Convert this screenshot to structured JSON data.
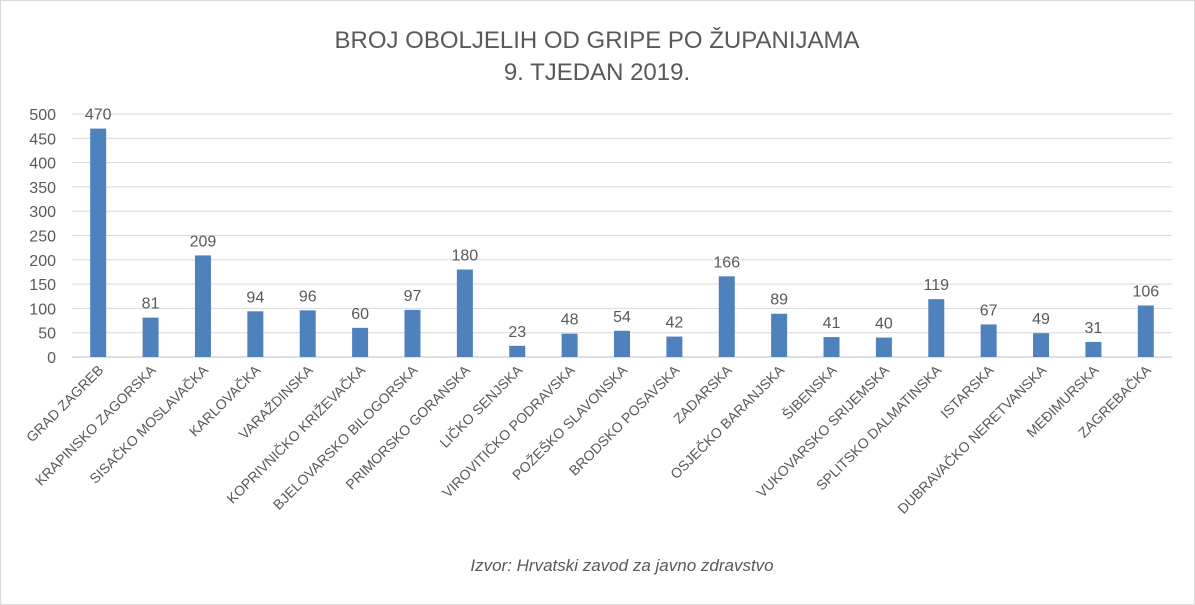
{
  "chart_data": {
    "type": "bar",
    "title": [
      "BROJ OBOLJELIH OD GRIPE PO ŽUPANIJAMA",
      "9. TJEDAN 2019."
    ],
    "source": "Izvor: Hrvatski zavod za javno zdravstvo",
    "xlabel": "",
    "ylabel": "",
    "ylim": [
      0,
      500
    ],
    "yticks": [
      0,
      50,
      100,
      150,
      200,
      250,
      300,
      350,
      400,
      450,
      500
    ],
    "grid": true,
    "bar_color": "#4f81bd",
    "categories": [
      "GRAD ZAGREB",
      "KRAPINSKO ZAGORSKA",
      "SISAČKO MOSLAVAČKA",
      "KARLOVAČKA",
      "VARAŽDINSKA",
      "KOPRIVNIČKO KRIŽEVAČKA",
      "BJELOVARSKO BILOGORSKA",
      "PRIMORSKO GORANSKA",
      "LIČKO SENJSKA",
      "VIROVITIČKO PODRAVSKA",
      "POŽEŠKO SLAVONSKA",
      "BRODSKO POSAVSKA",
      "ZADARSKA",
      "OSJEČKO BARANJSKA",
      "ŠIBENSKA",
      "VUKOVARSKO SRIJEMSKA",
      "SPLITSKO DALMATINSKA",
      "ISTARSKA",
      "DUBRAVAČKO NERETVANSKA",
      "MEĐIMURSKA",
      "ZAGREBAČKA"
    ],
    "values": [
      470,
      81,
      209,
      94,
      96,
      60,
      97,
      180,
      23,
      48,
      54,
      42,
      166,
      89,
      41,
      40,
      119,
      67,
      49,
      31,
      106
    ]
  }
}
